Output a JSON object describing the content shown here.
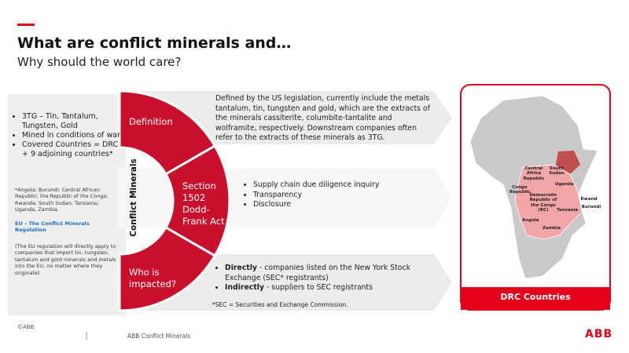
{
  "header": {
    "title": "What are conflict minerals and…",
    "subtitle": "Why should the world care?"
  },
  "left_panel": {
    "bullets": [
      "3TG – Tin, Tantalum, Tungsten, Gold",
      "Mined in conditions of war",
      "Covered Countries = DRC + 9 adjoining countries*"
    ],
    "footnote": "*Angola; Burundi; Central African Republic; the Republic of the Congo; Rwanda; South Sudan; Tanzania; Uganda, Zambia.",
    "eu_link": "EU – The Conflict Minerals Regulation",
    "eu_note": "(The EU regulation will directly apply to companies that import tin, tungsten, tantalum and gold minerals and metals into the EU, no matter where they originate)"
  },
  "center": {
    "label": "Conflict Minerals",
    "segments": [
      "Definition",
      "Section 1502 Dodd-Frank Act",
      "Who is impacted?"
    ]
  },
  "definition": {
    "text": "Defined by the US legislation, currently include the metals tantalum, tin, tungsten and gold, which are the extracts of the minerals cassiterite, columbite-tantalite and wolframite, respectively. Downstream companies often refer to the extracts of these minerals as 3TG."
  },
  "section": {
    "bullets": [
      "Supply chain due diligence inquiry",
      "Transparency",
      "Disclosure"
    ]
  },
  "impacted": {
    "bullets": [
      {
        "bold": "Directly",
        "text": " - companies listed on the New York Stock Exchange (SEC* registrants)"
      },
      {
        "bold": "Indirectly",
        "text": " - suppliers to SEC registrants"
      }
    ],
    "footnote": "*SEC = Securities and Exchange Commission."
  },
  "map": {
    "caption": "DRC Countries",
    "labels": [
      "Central Africa Republic",
      "South Sudan",
      "Congo Republic",
      "Democratic Republic of the Congo (RC)",
      "Uganda",
      "Rwand",
      "Burundi",
      "Tanzania",
      "Angola",
      "Zambia"
    ]
  },
  "footer": {
    "copyright": "©ABB",
    "label": "ABB Conflict Minerals",
    "logo": "ABB"
  }
}
